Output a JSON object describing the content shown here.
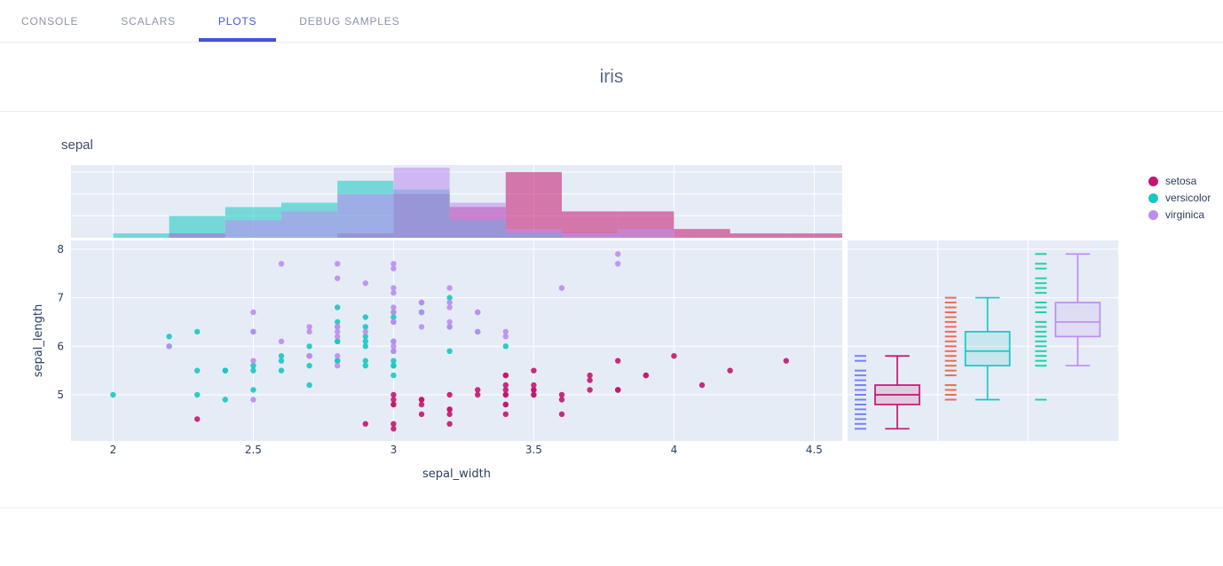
{
  "tabs": [
    {
      "label": "CONSOLE",
      "active": false
    },
    {
      "label": "SCALARS",
      "active": false
    },
    {
      "label": "PLOTS",
      "active": true
    },
    {
      "label": "DEBUG SAMPLES",
      "active": false
    }
  ],
  "active_tab": "PLOTS",
  "accent_color": "#4353d9",
  "page_title": "iris",
  "chart_data": {
    "type": "scatter",
    "subtype": "scatter-with-marginal-histogram-and-box",
    "title": "sepal",
    "xlabel": "sepal_width",
    "ylabel": "sepal_length",
    "x_range": [
      1.85,
      4.6
    ],
    "y_range": [
      4.05,
      8.18
    ],
    "x_ticks": [
      2,
      2.5,
      3,
      3.5,
      4,
      4.5
    ],
    "y_ticks": [
      5,
      6,
      7,
      8
    ],
    "panel_bg": "#E5ECF6",
    "grid_color": "#ffffff",
    "legend_position": "right",
    "legend": [
      "setosa",
      "versicolor",
      "virginica"
    ],
    "histogram": {
      "bin_start": 2.0,
      "bin_size": 0.2,
      "y_max": 16.6,
      "gridlines": [
        5,
        10,
        15
      ],
      "opacity": 0.55
    },
    "series": [
      {
        "name": "setosa",
        "color": "#c4166e",
        "rug_color": "#636efa",
        "box": {
          "min": 4.3,
          "q1": 4.8,
          "median": 5.0,
          "q3": 5.2,
          "max": 5.8,
          "outliers": []
        },
        "hist": [
          0,
          1,
          0,
          0,
          1,
          10,
          7,
          15,
          6,
          6,
          2,
          1,
          1
        ],
        "points": [
          [
            3.5,
            5.1
          ],
          [
            3.0,
            4.9
          ],
          [
            3.2,
            4.7
          ],
          [
            3.1,
            4.6
          ],
          [
            3.6,
            5.0
          ],
          [
            3.9,
            5.4
          ],
          [
            3.4,
            4.6
          ],
          [
            3.4,
            5.0
          ],
          [
            2.9,
            4.4
          ],
          [
            3.1,
            4.9
          ],
          [
            3.7,
            5.4
          ],
          [
            3.4,
            4.8
          ],
          [
            3.0,
            4.8
          ],
          [
            3.0,
            4.3
          ],
          [
            4.0,
            5.8
          ],
          [
            4.4,
            5.7
          ],
          [
            3.9,
            5.4
          ],
          [
            3.5,
            5.1
          ],
          [
            3.8,
            5.7
          ],
          [
            3.8,
            5.1
          ],
          [
            3.4,
            5.4
          ],
          [
            3.7,
            5.1
          ],
          [
            3.6,
            4.6
          ],
          [
            3.3,
            5.1
          ],
          [
            3.4,
            4.8
          ],
          [
            3.0,
            5.0
          ],
          [
            3.4,
            5.0
          ],
          [
            3.5,
            5.2
          ],
          [
            3.4,
            5.2
          ],
          [
            3.2,
            4.7
          ],
          [
            3.1,
            4.8
          ],
          [
            3.4,
            5.4
          ],
          [
            4.1,
            5.2
          ],
          [
            4.2,
            5.5
          ],
          [
            3.1,
            4.9
          ],
          [
            3.2,
            5.0
          ],
          [
            3.5,
            5.5
          ],
          [
            3.6,
            4.9
          ],
          [
            3.0,
            4.4
          ],
          [
            3.4,
            5.1
          ],
          [
            3.5,
            5.0
          ],
          [
            2.3,
            4.5
          ],
          [
            3.2,
            4.4
          ],
          [
            3.5,
            5.0
          ],
          [
            3.8,
            5.1
          ],
          [
            3.0,
            4.8
          ],
          [
            3.8,
            5.1
          ],
          [
            3.2,
            4.6
          ],
          [
            3.7,
            5.3
          ],
          [
            3.3,
            5.0
          ]
        ]
      },
      {
        "name": "versicolor",
        "color": "#18c8c0",
        "rug_color": "#ef553b",
        "box": {
          "min": 4.9,
          "q1": 5.6,
          "median": 5.9,
          "q3": 6.3,
          "max": 7.0,
          "outliers": []
        },
        "hist": [
          1,
          5,
          7,
          8,
          13,
          11,
          4,
          1,
          0,
          0,
          0,
          0,
          0
        ],
        "points": [
          [
            3.2,
            7.0
          ],
          [
            3.2,
            6.4
          ],
          [
            3.1,
            6.9
          ],
          [
            2.3,
            5.5
          ],
          [
            2.8,
            6.5
          ],
          [
            2.8,
            5.7
          ],
          [
            3.3,
            6.3
          ],
          [
            2.4,
            4.9
          ],
          [
            2.9,
            6.6
          ],
          [
            2.7,
            5.2
          ],
          [
            2.0,
            5.0
          ],
          [
            3.0,
            5.9
          ],
          [
            2.2,
            6.0
          ],
          [
            2.9,
            6.1
          ],
          [
            2.9,
            5.6
          ],
          [
            3.1,
            6.7
          ],
          [
            3.0,
            5.6
          ],
          [
            2.7,
            5.8
          ],
          [
            2.2,
            6.2
          ],
          [
            2.5,
            5.6
          ],
          [
            3.2,
            5.9
          ],
          [
            2.8,
            6.1
          ],
          [
            2.5,
            6.3
          ],
          [
            2.8,
            6.1
          ],
          [
            2.9,
            6.4
          ],
          [
            3.0,
            6.6
          ],
          [
            2.8,
            6.8
          ],
          [
            3.0,
            6.7
          ],
          [
            2.9,
            6.0
          ],
          [
            2.6,
            5.7
          ],
          [
            2.4,
            5.5
          ],
          [
            2.4,
            5.5
          ],
          [
            2.7,
            5.8
          ],
          [
            2.7,
            6.0
          ],
          [
            3.0,
            5.4
          ],
          [
            3.4,
            6.0
          ],
          [
            3.1,
            6.7
          ],
          [
            2.3,
            6.3
          ],
          [
            3.0,
            5.6
          ],
          [
            2.5,
            5.5
          ],
          [
            2.6,
            5.5
          ],
          [
            3.0,
            6.1
          ],
          [
            2.6,
            5.8
          ],
          [
            2.3,
            5.0
          ],
          [
            2.7,
            5.6
          ],
          [
            3.0,
            5.7
          ],
          [
            2.9,
            5.7
          ],
          [
            2.9,
            6.2
          ],
          [
            2.5,
            5.1
          ],
          [
            2.8,
            5.7
          ]
        ]
      },
      {
        "name": "virginica",
        "color": "#bd8cf0",
        "rug_color": "#00cc96",
        "box": {
          "min": 5.6,
          "q1": 6.2,
          "median": 6.5,
          "q3": 6.9,
          "max": 7.9,
          "outliers": [
            4.9
          ]
        },
        "hist": [
          0,
          1,
          4,
          6,
          10,
          16,
          8,
          2,
          1,
          2,
          0,
          0,
          0
        ],
        "points": [
          [
            3.3,
            6.3
          ],
          [
            2.7,
            5.8
          ],
          [
            3.0,
            7.1
          ],
          [
            2.9,
            6.3
          ],
          [
            3.0,
            6.5
          ],
          [
            3.0,
            7.6
          ],
          [
            2.5,
            4.9
          ],
          [
            2.9,
            7.3
          ],
          [
            2.5,
            6.7
          ],
          [
            3.6,
            7.2
          ],
          [
            3.2,
            6.5
          ],
          [
            2.7,
            6.4
          ],
          [
            3.0,
            6.8
          ],
          [
            2.5,
            5.7
          ],
          [
            2.8,
            5.8
          ],
          [
            3.2,
            6.4
          ],
          [
            3.0,
            6.5
          ],
          [
            3.8,
            7.7
          ],
          [
            2.6,
            7.7
          ],
          [
            2.2,
            6.0
          ],
          [
            3.2,
            6.9
          ],
          [
            2.8,
            5.6
          ],
          [
            2.8,
            7.7
          ],
          [
            2.7,
            6.3
          ],
          [
            3.3,
            6.7
          ],
          [
            3.2,
            7.2
          ],
          [
            2.8,
            6.2
          ],
          [
            3.0,
            6.1
          ],
          [
            2.8,
            6.4
          ],
          [
            3.0,
            7.2
          ],
          [
            2.8,
            7.4
          ],
          [
            3.8,
            7.9
          ],
          [
            2.8,
            6.4
          ],
          [
            2.8,
            6.3
          ],
          [
            2.6,
            6.1
          ],
          [
            3.0,
            7.7
          ],
          [
            3.4,
            6.3
          ],
          [
            3.1,
            6.4
          ],
          [
            3.0,
            6.0
          ],
          [
            3.1,
            6.9
          ],
          [
            3.1,
            6.7
          ],
          [
            3.1,
            6.9
          ],
          [
            2.7,
            5.8
          ],
          [
            3.2,
            6.8
          ],
          [
            3.3,
            6.7
          ],
          [
            3.0,
            6.7
          ],
          [
            2.5,
            6.3
          ],
          [
            3.0,
            6.5
          ],
          [
            3.4,
            6.2
          ],
          [
            3.0,
            5.9
          ]
        ]
      }
    ]
  }
}
